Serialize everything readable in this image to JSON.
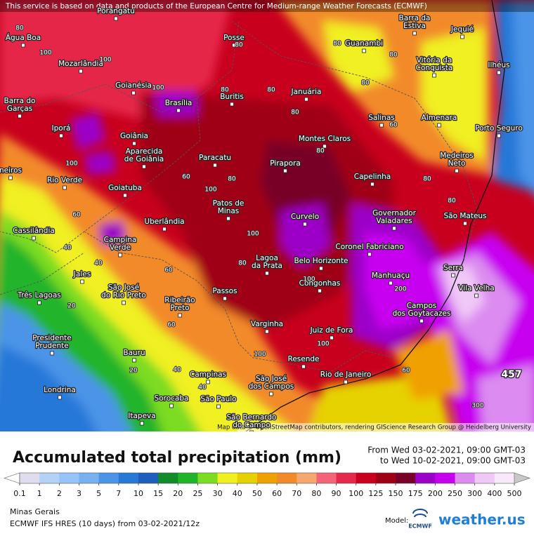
{
  "header": {
    "notice": "This service is based on data and products of the European Centre for Medium-range Weather Forecasts (ECMWF)"
  },
  "map": {
    "cities": [
      [
        "Água Boa"
      ],
      [
        "Porangatu"
      ],
      [
        "Posse"
      ],
      [
        "Guanambi"
      ],
      [
        "Barra da",
        "Estiva"
      ],
      [
        "Jequié"
      ],
      [
        "Mozarlândia"
      ],
      [
        "Goianésia"
      ],
      [
        "Vitória da",
        "Conquista"
      ],
      [
        "Ilhéus"
      ],
      [
        "Brasília"
      ],
      [
        "Buritis"
      ],
      [
        "Januária"
      ],
      [
        "Barra do",
        "Garças"
      ],
      [
        "Salinas"
      ],
      [
        "Almenara"
      ],
      [
        "Porto Seguro"
      ],
      [
        "Iporá"
      ],
      [
        "Goiânia"
      ],
      [
        "Montes Claros"
      ],
      [
        "Aparecida",
        "de Goiânia"
      ],
      [
        "Paracatu"
      ],
      [
        "Pirapora"
      ],
      [
        "Medeiros",
        "Neto"
      ],
      [
        "Rio Verde"
      ],
      [
        "Goiatuba"
      ],
      [
        "Capelinha"
      ],
      [
        "neiros"
      ],
      [
        "São Mateus"
      ],
      [
        "Patos de",
        "Minas"
      ],
      [
        "Governador",
        "Valadares"
      ],
      [
        "Curvelo"
      ],
      [
        "Uberlândia"
      ],
      [
        "Cassilândia"
      ],
      [
        "Campina",
        "Verde"
      ],
      [
        "Coronel Fabriciano"
      ],
      [
        "Serra"
      ],
      [
        "Lagoa",
        "da Prata"
      ],
      [
        "Belo Horizonte"
      ],
      [
        "Manhuaçu"
      ],
      [
        "Vila Velha"
      ],
      [
        "Jales"
      ],
      [
        "São José",
        "do Rio Preto"
      ],
      [
        "Passos"
      ],
      [
        "Congonhas"
      ],
      [
        "Três Lagoas"
      ],
      [
        "Ribeirão",
        "Preto"
      ],
      [
        "Campos",
        "dos Goytacazes"
      ],
      [
        "Varginha"
      ],
      [
        "Juiz de Fora"
      ],
      [
        "Presidente",
        "Prudente"
      ],
      [
        "Bauru"
      ],
      [
        "Resende"
      ],
      [
        "Campinas"
      ],
      [
        "Rio de Janeiro"
      ],
      [
        "São José",
        "dos Campos"
      ],
      [
        "Londrina"
      ],
      [
        "Sorocaba"
      ],
      [
        "São Paulo"
      ],
      [
        "Itapeva"
      ],
      [
        "São Bernardo",
        "do Campo"
      ]
    ],
    "contour_labels": [
      80,
      100,
      80,
      80,
      80,
      100,
      100,
      80,
      80,
      80,
      80,
      80,
      100,
      60,
      100,
      80,
      80,
      60,
      80,
      40,
      40,
      60,
      80,
      100,
      20,
      60,
      100,
      100,
      200,
      60,
      40,
      40,
      20,
      300,
      60,
      100
    ],
    "peak_value": 457,
    "attribution": "Map data © OpenStreetMap contributors, rendering GIScience Research Group @ Heidelberg University"
  },
  "legend": {
    "title": "Accumulated total precipitation (mm)",
    "period_from": "From Wed 03-02-2021, 09:00 GMT-03",
    "period_to": "to Wed 10-02-2021, 09:00 GMT-03",
    "ticks": [
      0.1,
      1,
      2,
      3,
      5,
      7,
      10,
      15,
      20,
      25,
      30,
      40,
      50,
      60,
      70,
      80,
      90,
      100,
      125,
      150,
      175,
      200,
      250,
      300,
      400,
      500
    ],
    "colors": [
      "#e0dcf0",
      "#b4d2f8",
      "#96c4f8",
      "#78b0f0",
      "#4c94e8",
      "#2878d8",
      "#1e5ebe",
      "#128c28",
      "#20b42a",
      "#7cdc20",
      "#f0f020",
      "#e6d200",
      "#f0a000",
      "#f28a2a",
      "#f4a870",
      "#f46478",
      "#e6284a",
      "#c8001e",
      "#a00014",
      "#780028",
      "#9c00c8",
      "#c800f0",
      "#dc8cf0",
      "#f0c8f8",
      "#f8e8fa"
    ],
    "below_color": "#ffffff",
    "above_color": "#c8c8c8"
  },
  "footer": {
    "region": "Minas Gerais",
    "model_run": "ECMWF IFS HRES (10 days) from 03-02-2021/12z",
    "model_label": "Model:",
    "model_logo": "ECMWF",
    "brand": "weather.us"
  }
}
